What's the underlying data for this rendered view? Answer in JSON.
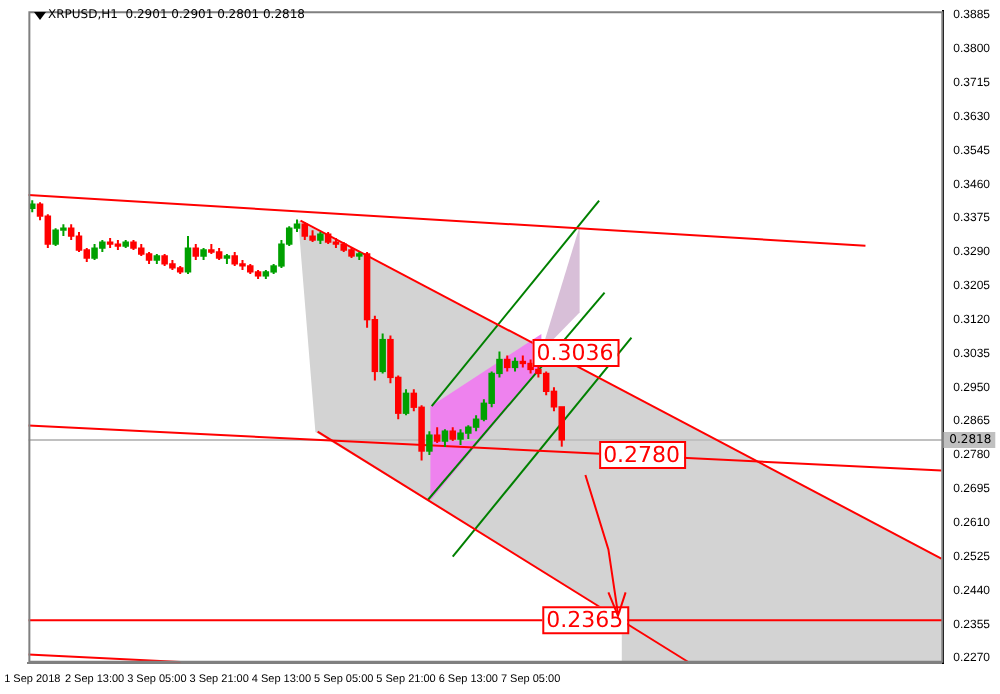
{
  "chart_data": {
    "type": "candlestick",
    "title": "XRPUSD,H1  0.2901 0.2901 0.2801 0.2818",
    "xlim": [
      "2018-09-01T20:00",
      "2018-09-11T15:00"
    ],
    "ylim": [
      0.2258,
      0.3895
    ],
    "xticks": [
      {
        "value": "2018-09-01T21:00",
        "label": "1 Sep 2018"
      },
      {
        "value": "2018-09-02T13:00",
        "label": "2 Sep 13:00"
      },
      {
        "value": "2018-09-03T05:00",
        "label": "3 Sep 05:00"
      },
      {
        "value": "2018-09-03T21:00",
        "label": "3 Sep 21:00"
      },
      {
        "value": "2018-09-04T13:00",
        "label": "4 Sep 13:00"
      },
      {
        "value": "2018-09-05T05:00",
        "label": "5 Sep 05:00"
      },
      {
        "value": "2018-09-05T21:00",
        "label": "5 Sep 21:00"
      },
      {
        "value": "2018-09-06T13:00",
        "label": "6 Sep 13:00"
      },
      {
        "value": "2018-09-07T05:00",
        "label": "7 Sep 05:00"
      }
    ],
    "yticks": [
      {
        "value": 0.3885,
        "label": "0.3885"
      },
      {
        "value": 0.38,
        "label": "0.3800"
      },
      {
        "value": 0.3715,
        "label": "0.3715"
      },
      {
        "value": 0.363,
        "label": "0.3630"
      },
      {
        "value": 0.3545,
        "label": "0.3545"
      },
      {
        "value": 0.346,
        "label": "0.3460"
      },
      {
        "value": 0.3375,
        "label": "0.3375"
      },
      {
        "value": 0.329,
        "label": "0.3290"
      },
      {
        "value": 0.3205,
        "label": "0.3205"
      },
      {
        "value": 0.312,
        "label": "0.3120"
      },
      {
        "value": 0.3035,
        "label": "0.3035"
      },
      {
        "value": 0.295,
        "label": "0.2950"
      },
      {
        "value": 0.2865,
        "label": "0.2865"
      },
      {
        "value": 0.278,
        "label": "0.2780"
      },
      {
        "value": 0.2695,
        "label": "0.2695"
      },
      {
        "value": 0.261,
        "label": "0.2610"
      },
      {
        "value": 0.2525,
        "label": "0.2525"
      },
      {
        "value": 0.244,
        "label": "0.2440"
      },
      {
        "value": 0.2355,
        "label": "0.2355"
      },
      {
        "value": 0.227,
        "label": "0.2270"
      }
    ],
    "grid": false,
    "legend": false,
    "series": [
      {
        "type": "line",
        "color": "#ff0000",
        "x": [
          "2018-09-01T20:00",
          "2018-09-10T19:00"
        ],
        "values": [
          0.3433,
          0.3306
        ]
      },
      {
        "type": "line",
        "color": "#ff0000",
        "x": [
          "2018-09-01T20:00",
          "2018-09-11T14:30"
        ],
        "values": [
          0.2854,
          0.2741
        ]
      },
      {
        "type": "line",
        "color": "#ff0000",
        "x": [
          "2018-09-04T17:54",
          "2018-09-11T14:30"
        ],
        "values": [
          0.3369,
          0.252
        ]
      },
      {
        "type": "line",
        "color": "#ff0000",
        "x": [
          "2018-09-04T22:18",
          "2018-09-08T21:30"
        ],
        "values": [
          0.2839,
          0.226
        ]
      },
      {
        "type": "line",
        "color": "#ff0000",
        "x": [
          "2018-09-01T20:00",
          "2018-09-03T11:06"
        ],
        "values": [
          0.2279,
          0.226
        ]
      },
      {
        "type": "line",
        "color": "#008000",
        "x": [
          "2018-09-06T03:36",
          "2018-09-07T22:36"
        ],
        "values": [
          0.2903,
          0.3419
        ]
      },
      {
        "type": "line",
        "color": "#008000",
        "x": [
          "2018-09-06T02:36",
          "2018-09-08T00:00"
        ],
        "values": [
          0.2667,
          0.3188
        ]
      },
      {
        "type": "line",
        "color": "#008000",
        "x": [
          "2018-09-06T09:00",
          "2018-09-08T06:54"
        ],
        "values": [
          0.2525,
          0.3075
        ]
      },
      {
        "x": [
          "2018-09-01T21:00",
          "2018-09-01T23:00",
          "2018-09-02T01:00",
          "2018-09-02T03:00",
          "2018-09-02T05:00",
          "2018-09-02T07:00",
          "2018-09-02T09:00",
          "2018-09-02T11:00",
          "2018-09-02T13:00",
          "2018-09-02T15:00",
          "2018-09-02T17:00",
          "2018-09-02T19:00",
          "2018-09-02T21:00",
          "2018-09-02T23:00",
          "2018-09-03T01:00",
          "2018-09-03T03:00",
          "2018-09-03T05:00",
          "2018-09-03T07:00",
          "2018-09-03T09:00",
          "2018-09-03T11:00",
          "2018-09-03T13:00",
          "2018-09-03T15:00",
          "2018-09-03T17:00",
          "2018-09-03T19:00",
          "2018-09-03T21:00",
          "2018-09-03T23:00",
          "2018-09-04T01:00",
          "2018-09-04T03:00",
          "2018-09-04T05:00",
          "2018-09-04T07:00",
          "2018-09-04T09:00",
          "2018-09-04T11:00",
          "2018-09-04T13:00",
          "2018-09-04T15:00",
          "2018-09-04T17:00",
          "2018-09-04T19:00",
          "2018-09-04T21:00",
          "2018-09-04T23:00",
          "2018-09-05T01:00",
          "2018-09-05T03:00",
          "2018-09-05T05:00",
          "2018-09-05T07:00",
          "2018-09-05T09:00",
          "2018-09-05T11:00",
          "2018-09-05T13:00",
          "2018-09-05T15:00",
          "2018-09-05T17:00",
          "2018-09-05T19:00",
          "2018-09-05T21:00",
          "2018-09-05T23:00",
          "2018-09-06T01:00",
          "2018-09-06T03:00",
          "2018-09-06T05:00",
          "2018-09-06T07:00",
          "2018-09-06T09:00",
          "2018-09-06T11:00",
          "2018-09-06T13:00",
          "2018-09-06T15:00",
          "2018-09-06T17:00",
          "2018-09-06T19:00",
          "2018-09-06T21:00",
          "2018-09-06T23:00",
          "2018-09-07T01:00",
          "2018-09-07T03:00",
          "2018-09-07T05:00",
          "2018-09-07T07:00",
          "2018-09-07T09:00",
          "2018-09-07T11:00",
          "2018-09-07T13:00"
        ],
        "colors": [
          "#00a000",
          "#ff0000",
          "#ff0000",
          "#00a000",
          "#00a000",
          "#ff0000",
          "#ff0000",
          "#ff0000",
          "#00a000",
          "#00a000",
          "#ff0000",
          "#ff0000",
          "#00a000",
          "#ff0000",
          "#ff0000",
          "#ff0000",
          "#00a000",
          "#ff0000",
          "#ff0000",
          "#ff0000",
          "#00a000",
          "#ff0000",
          "#00a000",
          "#ff0000",
          "#ff0000",
          "#00a000",
          "#ff0000",
          "#ff0000",
          "#ff0000",
          "#ff0000",
          "#00a000",
          "#00a000",
          "#00a000",
          "#00a000",
          "#00a000",
          "#ff0000",
          "#ff0000",
          "#00a000",
          "#ff0000",
          "#ff0000",
          "#ff0000",
          "#ff0000",
          "#00a000",
          "#ff0000",
          "#ff0000",
          "#00a000",
          "#ff0000",
          "#ff0000",
          "#00a000",
          "#ff0000",
          "#ff0000",
          "#00a000",
          "#ff0000",
          "#00a000",
          "#ff0000",
          "#00a000",
          "#00a000",
          "#00a000",
          "#00a000",
          "#00a000",
          "#00a000",
          "#ff0000",
          "#00a000",
          "#ff0000",
          "#ff0000",
          "#ff0000",
          "#ff0000",
          "#ff0000",
          "#ff0000"
        ],
        "ohlc": [
          [
            0.34,
            0.342,
            0.339,
            0.341
          ],
          [
            0.341,
            0.3415,
            0.337,
            0.338
          ],
          [
            0.338,
            0.3385,
            0.33,
            0.331
          ],
          [
            0.331,
            0.335,
            0.3305,
            0.3345
          ],
          [
            0.3345,
            0.336,
            0.333,
            0.335
          ],
          [
            0.335,
            0.336,
            0.332,
            0.333
          ],
          [
            0.333,
            0.334,
            0.329,
            0.3295
          ],
          [
            0.3295,
            0.33,
            0.3265,
            0.3275
          ],
          [
            0.3275,
            0.331,
            0.327,
            0.33
          ],
          [
            0.33,
            0.332,
            0.329,
            0.3315
          ],
          [
            0.3315,
            0.3325,
            0.33,
            0.331
          ],
          [
            0.331,
            0.332,
            0.3295,
            0.3305
          ],
          [
            0.3305,
            0.332,
            0.33,
            0.3315
          ],
          [
            0.3315,
            0.332,
            0.3295,
            0.33
          ],
          [
            0.33,
            0.331,
            0.328,
            0.3285
          ],
          [
            0.3285,
            0.329,
            0.326,
            0.327
          ],
          [
            0.327,
            0.3285,
            0.326,
            0.328
          ],
          [
            0.328,
            0.3285,
            0.3255,
            0.326
          ],
          [
            0.326,
            0.327,
            0.3245,
            0.325
          ],
          [
            0.325,
            0.3255,
            0.3235,
            0.324
          ],
          [
            0.324,
            0.333,
            0.3235,
            0.33
          ],
          [
            0.33,
            0.331,
            0.327,
            0.328
          ],
          [
            0.328,
            0.33,
            0.327,
            0.3295
          ],
          [
            0.3295,
            0.331,
            0.3285,
            0.329
          ],
          [
            0.329,
            0.33,
            0.327,
            0.3275
          ],
          [
            0.3275,
            0.3285,
            0.326,
            0.328
          ],
          [
            0.328,
            0.329,
            0.3255,
            0.326
          ],
          [
            0.326,
            0.327,
            0.3245,
            0.3255
          ],
          [
            0.3255,
            0.326,
            0.3235,
            0.324
          ],
          [
            0.324,
            0.3245,
            0.3222,
            0.323
          ],
          [
            0.323,
            0.3245,
            0.3222,
            0.324
          ],
          [
            0.324,
            0.326,
            0.3235,
            0.3255
          ],
          [
            0.3255,
            0.332,
            0.325,
            0.331
          ],
          [
            0.331,
            0.3355,
            0.3305,
            0.335
          ],
          [
            0.335,
            0.3372,
            0.334,
            0.336
          ],
          [
            0.336,
            0.3365,
            0.332,
            0.333
          ],
          [
            0.333,
            0.3345,
            0.3315,
            0.332
          ],
          [
            0.332,
            0.334,
            0.331,
            0.3335
          ],
          [
            0.3335,
            0.334,
            0.331,
            0.3315
          ],
          [
            0.3315,
            0.3325,
            0.33,
            0.331
          ],
          [
            0.331,
            0.3315,
            0.329,
            0.3295
          ],
          [
            0.3295,
            0.33,
            0.3275,
            0.328
          ],
          [
            0.328,
            0.329,
            0.327,
            0.3285
          ],
          [
            0.3285,
            0.329,
            0.31,
            0.312
          ],
          [
            0.312,
            0.313,
            0.2967,
            0.299
          ],
          [
            0.299,
            0.3085,
            0.2985,
            0.307
          ],
          [
            0.307,
            0.308,
            0.296,
            0.2975
          ],
          [
            0.2975,
            0.298,
            0.287,
            0.2885
          ],
          [
            0.2885,
            0.2945,
            0.288,
            0.2935
          ],
          [
            0.2935,
            0.2945,
            0.289,
            0.29
          ],
          [
            0.29,
            0.2905,
            0.2766,
            0.279
          ],
          [
            0.279,
            0.284,
            0.278,
            0.283
          ],
          [
            0.283,
            0.285,
            0.281,
            0.2815
          ],
          [
            0.2815,
            0.2845,
            0.28,
            0.284
          ],
          [
            0.284,
            0.285,
            0.2815,
            0.282
          ],
          [
            0.282,
            0.2845,
            0.2805,
            0.2835
          ],
          [
            0.2835,
            0.2855,
            0.282,
            0.285
          ],
          [
            0.285,
            0.288,
            0.284,
            0.287
          ],
          [
            0.287,
            0.292,
            0.2865,
            0.291
          ],
          [
            0.291,
            0.299,
            0.29,
            0.2985
          ],
          [
            0.2985,
            0.304,
            0.2975,
            0.302
          ],
          [
            0.302,
            0.303,
            0.299,
            0.3
          ],
          [
            0.3,
            0.3025,
            0.299,
            0.3015
          ],
          [
            0.3015,
            0.303,
            0.3,
            0.301
          ],
          [
            0.301,
            0.302,
            0.2985,
            0.2995
          ],
          [
            0.2995,
            0.3005,
            0.2975,
            0.2985
          ],
          [
            0.2985,
            0.299,
            0.293,
            0.294
          ],
          [
            0.294,
            0.295,
            0.289,
            0.2901
          ],
          [
            0.2901,
            0.2901,
            0.2801,
            0.2818
          ]
        ]
      }
    ],
    "ref_lines": [
      {
        "axis": "y",
        "value": 0.2365,
        "color": "#ff0000"
      },
      {
        "axis": "y",
        "value": 0.2818,
        "label": "0.2818",
        "color": "#c0c0c0"
      }
    ],
    "annotations": [
      {
        "text": "0.3036",
        "x": "2018-09-07T05:30",
        "y": 0.3036
      },
      {
        "text": "0.2780",
        "x": "2018-09-07T22:36",
        "y": 0.278
      },
      {
        "text": "0.2365",
        "x": "2018-09-07T08:00",
        "y": 0.2365
      }
    ]
  }
}
